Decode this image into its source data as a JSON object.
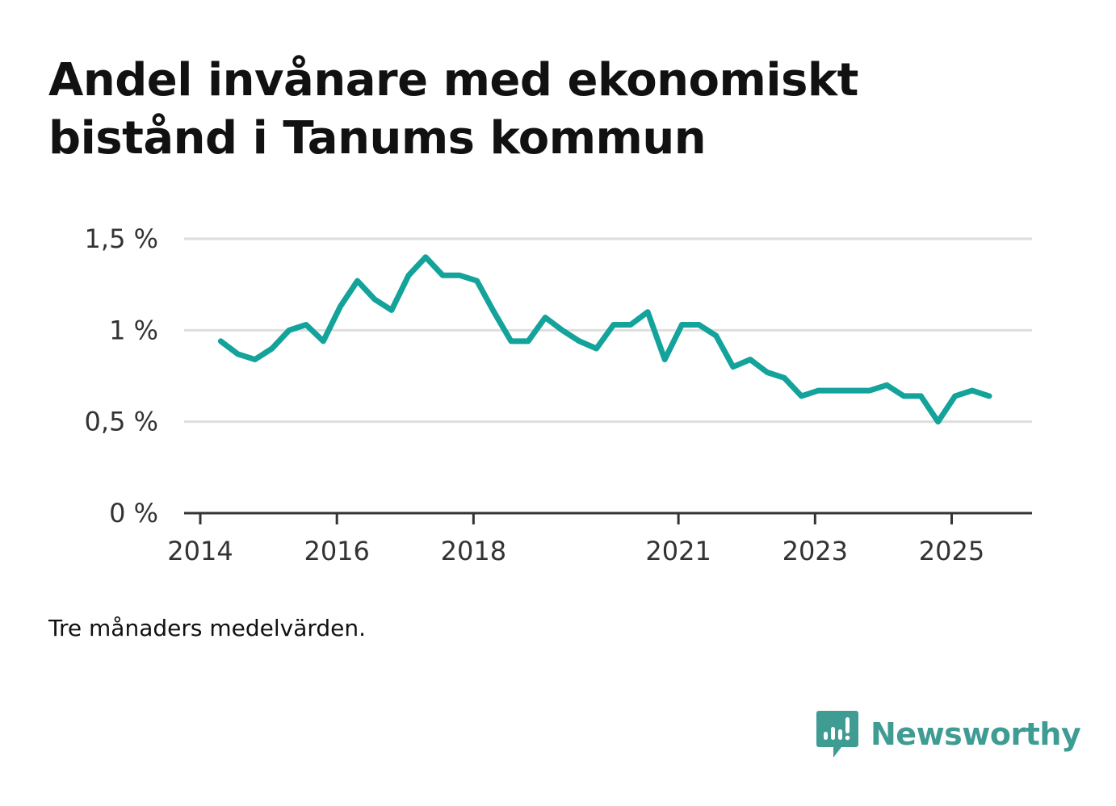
{
  "title_lines": [
    "Andel invånare med ekonomiskt",
    "bistånd i Tanums kommun"
  ],
  "note": "Tre månaders medelvärden.",
  "brand": {
    "name": "Newsworthy",
    "icon": "newsworthy-logo-icon",
    "color": "#3f9c93"
  },
  "colors": {
    "line": "#13a39b",
    "grid": "#dedede",
    "axis": "#333333",
    "text": "#111111"
  },
  "chart_data": {
    "type": "line",
    "title": "Andel invånare med ekonomiskt bistånd i Tanums kommun",
    "xlabel": "",
    "ylabel": "",
    "ylim": [
      0,
      1.5
    ],
    "xlim": [
      2014.0,
      2026.2
    ],
    "grid": true,
    "legend": "none",
    "y_ticks": [
      {
        "value": 0,
        "label": "0 %"
      },
      {
        "value": 0.5,
        "label": "0,5 %"
      },
      {
        "value": 1,
        "label": "1 %"
      },
      {
        "value": 1.5,
        "label": "1,5 %"
      }
    ],
    "x_ticks": [
      {
        "value": 2014,
        "label": "2014"
      },
      {
        "value": 2016,
        "label": "2016"
      },
      {
        "value": 2018,
        "label": "2018"
      },
      {
        "value": 2021,
        "label": "2021"
      },
      {
        "value": 2023,
        "label": "2023"
      },
      {
        "value": 2025,
        "label": "2025"
      }
    ],
    "series": [
      {
        "name": "Andel invånare med ekonomiskt bistånd",
        "x": [
          2014.3,
          2014.55,
          2014.8,
          2015.05,
          2015.3,
          2015.55,
          2015.8,
          2016.05,
          2016.3,
          2016.55,
          2016.8,
          2017.05,
          2017.3,
          2017.55,
          2017.8,
          2018.05,
          2018.3,
          2018.55,
          2018.8,
          2019.05,
          2019.3,
          2019.55,
          2019.8,
          2020.05,
          2020.3,
          2020.55,
          2020.8,
          2021.05,
          2021.3,
          2021.55,
          2021.8,
          2022.05,
          2022.3,
          2022.55,
          2022.8,
          2023.05,
          2023.3,
          2023.55,
          2023.8,
          2024.05,
          2024.3,
          2024.55,
          2024.8,
          2025.05,
          2025.3,
          2025.55
        ],
        "values": [
          0.94,
          0.87,
          0.84,
          0.9,
          1.0,
          1.03,
          0.94,
          1.13,
          1.27,
          1.17,
          1.11,
          1.3,
          1.4,
          1.3,
          1.3,
          1.27,
          1.1,
          0.94,
          0.94,
          1.07,
          1.0,
          0.94,
          0.9,
          1.03,
          1.03,
          1.1,
          0.84,
          1.03,
          1.03,
          0.97,
          0.8,
          0.84,
          0.77,
          0.74,
          0.64,
          0.67,
          0.67,
          0.67,
          0.67,
          0.7,
          0.64,
          0.64,
          0.5,
          0.64,
          0.67,
          0.64
        ]
      }
    ]
  }
}
